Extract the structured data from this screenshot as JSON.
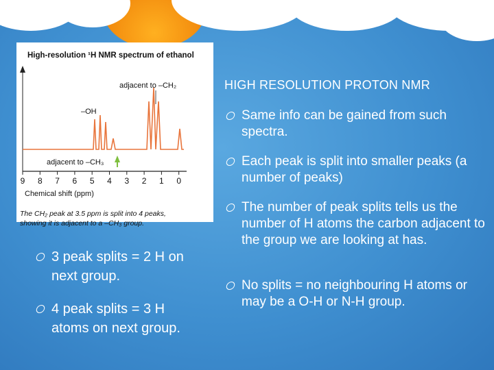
{
  "slide": {
    "title": "HIGH RESOLUTION PROTON NMR",
    "right_bullets": [
      "Same info can be gained from such spectra.",
      "Each peak is split into smaller peaks (a number of peaks)",
      "The number of peak splits tells us the number of H atoms the carbon adjacent to the group we are looking at has.",
      "No splits = no neighbouring H atoms or may be a O-H or N-H group."
    ],
    "left_bullets": [
      "3 peak splits = 2 H on next group.",
      "4 peak splits = 3 H atoms on next group."
    ]
  },
  "figure": {
    "title": "High-resolution ¹H NMR spectrum of ethanol",
    "label_ch2": "adjacent to –CH₂",
    "label_oh": "–OH",
    "label_ch3": "adjacent to –CH₃",
    "xlabel": "Chemical shift (ppm)",
    "ticks": [
      "9",
      "8",
      "7",
      "6",
      "5",
      "4",
      "3",
      "2",
      "1",
      "0"
    ],
    "caption_line1": "The CH₂ peak at 3.5 ppm is split into 4 peaks,",
    "caption_line2": "showing it is adjacent to a –CH₃ group."
  },
  "colors": {
    "background": "#3f8fd0",
    "spectrum": "#e8743b",
    "arrow": "#7fbf3f"
  },
  "icons": [
    "bullet-ring-icon"
  ]
}
